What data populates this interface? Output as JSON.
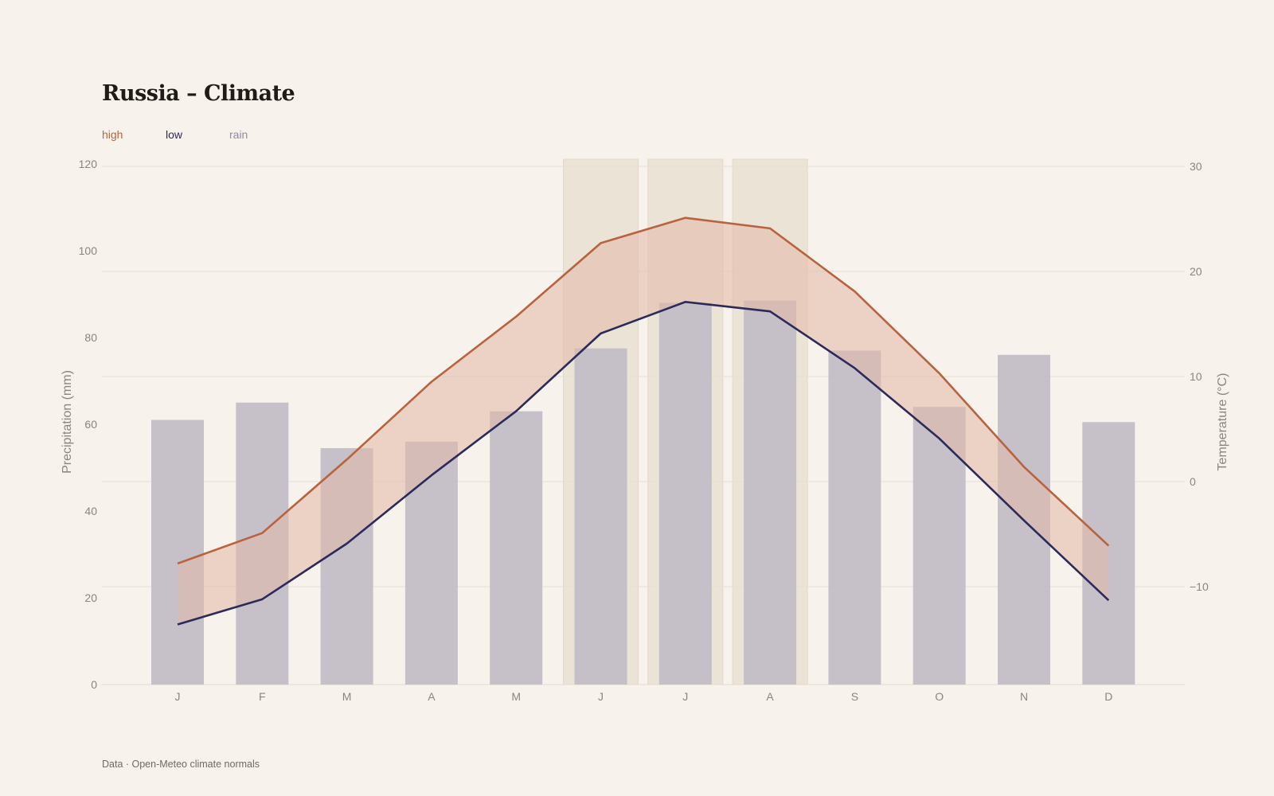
{
  "header": {
    "title": "Russia – Climate"
  },
  "legend": {
    "items": [
      {
        "label": "high",
        "color": "#b8633f"
      },
      {
        "label": "low",
        "color": "#2c2a5a"
      },
      {
        "label": "rain",
        "color": "#8f8aa6"
      }
    ]
  },
  "footer": {
    "source": "Data · Open-Meteo climate normals"
  },
  "chart_data": {
    "type": "bar+line",
    "categories": [
      "J",
      "F",
      "M",
      "A",
      "M",
      "J",
      "J",
      "A",
      "S",
      "O",
      "N",
      "D"
    ],
    "rain": {
      "name": "rain",
      "axis": "left",
      "values": [
        61,
        65,
        54.5,
        56,
        63,
        77.5,
        88,
        88.5,
        77,
        64,
        76,
        60.5
      ]
    },
    "series": [
      {
        "name": "high",
        "axis": "right",
        "values": [
          -7.8,
          -4.9,
          2.1,
          9.5,
          15.7,
          22.7,
          25.1,
          24.1,
          18.1,
          10.3,
          1.4,
          -6.1
        ]
      },
      {
        "name": "low",
        "axis": "right",
        "values": [
          -13.6,
          -11.2,
          -5.9,
          0.6,
          6.7,
          14.1,
          17.1,
          16.2,
          10.8,
          4.1,
          -3.7,
          -11.3
        ]
      }
    ],
    "highlight_months": [
      "J",
      "J",
      "A"
    ],
    "y_left": {
      "label": "Precipitation (mm)",
      "min": 0,
      "max": 120,
      "ticks": [
        0,
        20,
        40,
        60,
        80,
        100,
        120
      ]
    },
    "y_right": {
      "label": "Temperature (°C)",
      "min": -19,
      "max": 30,
      "ticks": [
        30,
        20,
        10,
        0,
        -10
      ],
      "tick_labels": [
        "30",
        "20",
        "10",
        "0",
        "−10"
      ]
    },
    "grid": true,
    "colors": {
      "rain_bar": "#c1bdc6",
      "high_line": "#b8633f",
      "low_line": "#2c2a5a",
      "band_fill": "#e3b8a5",
      "highlight": "#ece3d7"
    }
  }
}
